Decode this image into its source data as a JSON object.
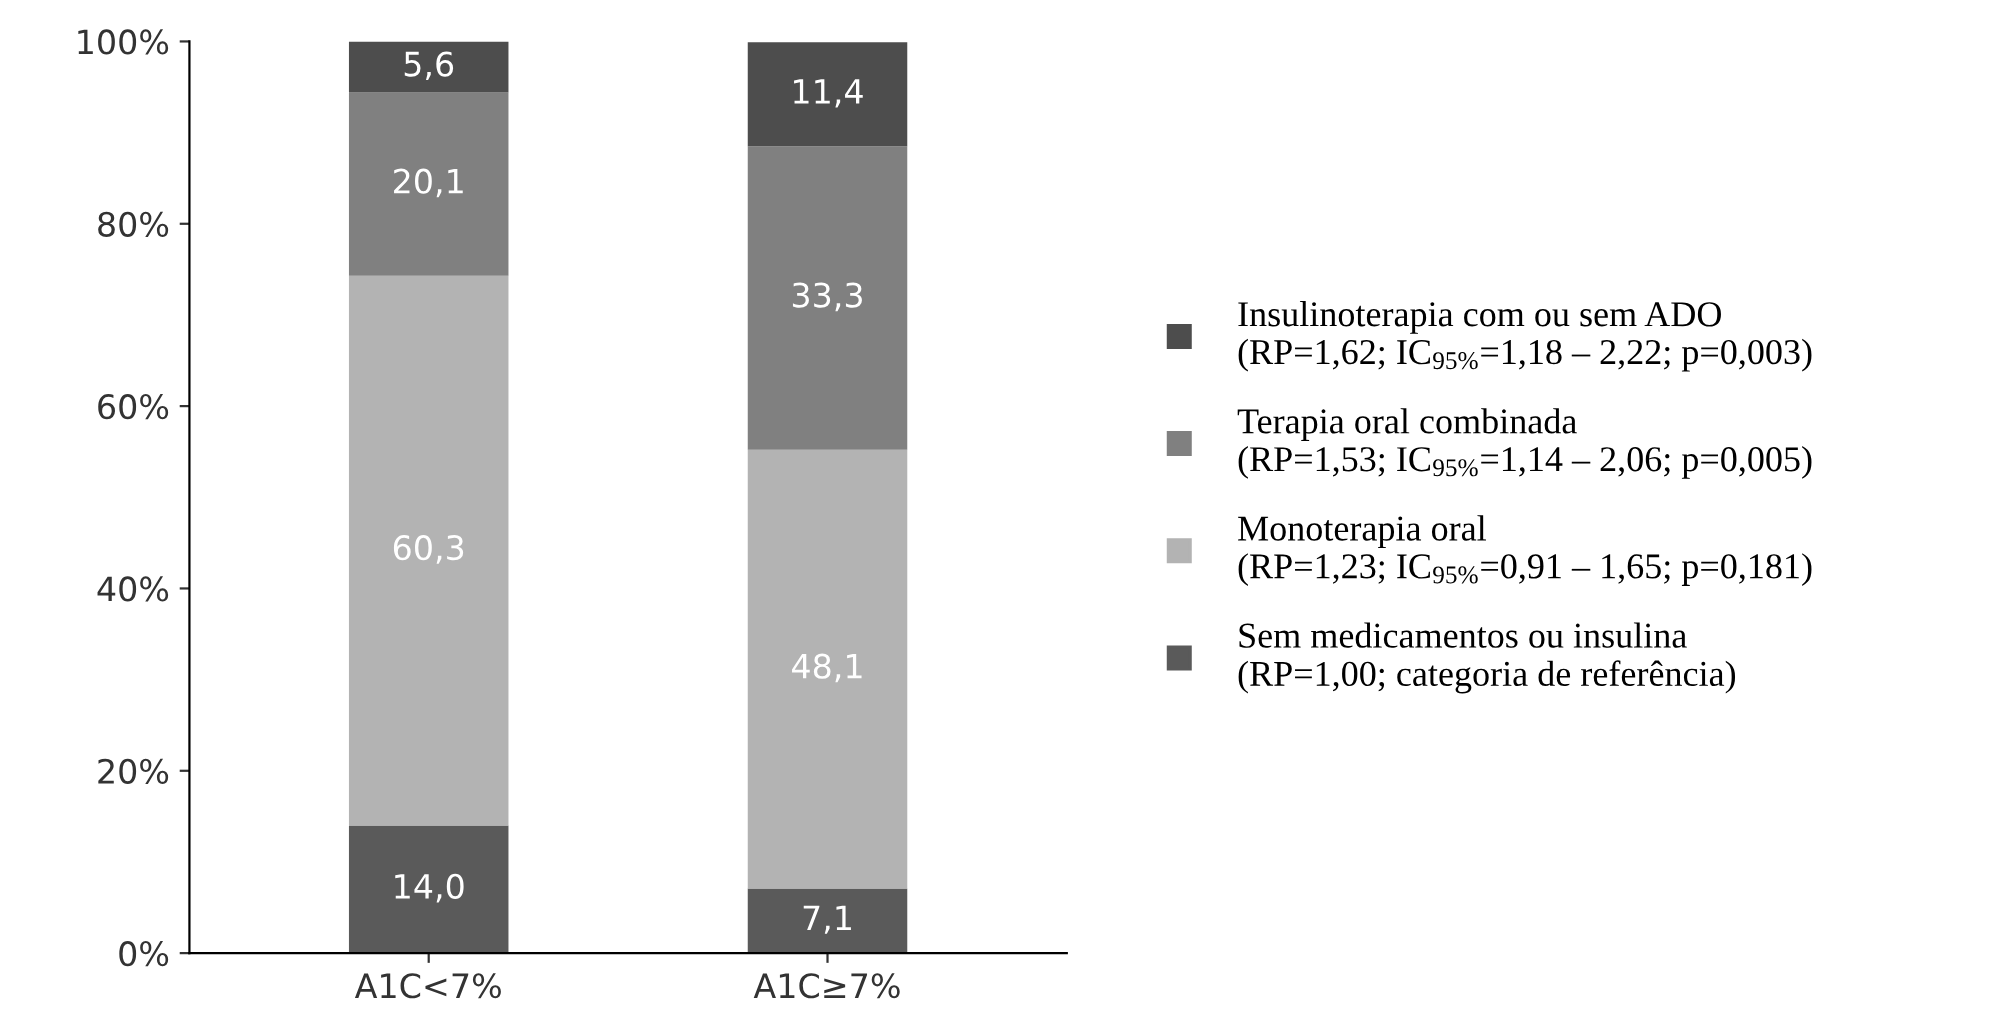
{
  "chart_data": {
    "type": "bar",
    "stacked": true,
    "grid": false,
    "legend": "right",
    "categories": [
      "A1C<7%",
      "A1C≥7%"
    ],
    "series": [
      {
        "name": "Sem medicamentos ou insulina\n(RP=1,00; categoria de referência)",
        "color": "#5a5a5a",
        "values": [
          14.0,
          7.1
        ],
        "value_labels": [
          "14,0",
          "7,1"
        ]
      },
      {
        "name": "Monoterapia oral\n(RP=1,23; IC$_{95%}$=0,91 – 1,65; p=0,181)",
        "color": "#b3b3b3",
        "values": [
          60.3,
          48.1
        ],
        "value_labels": [
          "60,3",
          "48,1"
        ]
      },
      {
        "name": "Terapia oral combinada\n(RP=1,53; IC$_{95%}$=1,14 – 2,06; p=0,005)",
        "color": "#808080",
        "values": [
          20.1,
          33.3
        ],
        "value_labels": [
          "20,1",
          "33,3"
        ]
      },
      {
        "name": "Insulinoterapia com ou sem ADO\n(RP=1,62; IC$_{95%}$=1,18 – 2,22; p=0,003)",
        "color": "#4d4d4d",
        "values": [
          5.6,
          11.4
        ],
        "value_labels": [
          "5,6",
          "11,4"
        ]
      }
    ],
    "ylim": [
      0,
      100
    ],
    "yticks": [
      {
        "value": 0,
        "label": "0%"
      },
      {
        "value": 20,
        "label": "20%"
      },
      {
        "value": 40,
        "label": "40%"
      },
      {
        "value": 60,
        "label": "60%"
      },
      {
        "value": 80,
        "label": "80%"
      },
      {
        "value": 100,
        "label": "100%"
      }
    ]
  }
}
